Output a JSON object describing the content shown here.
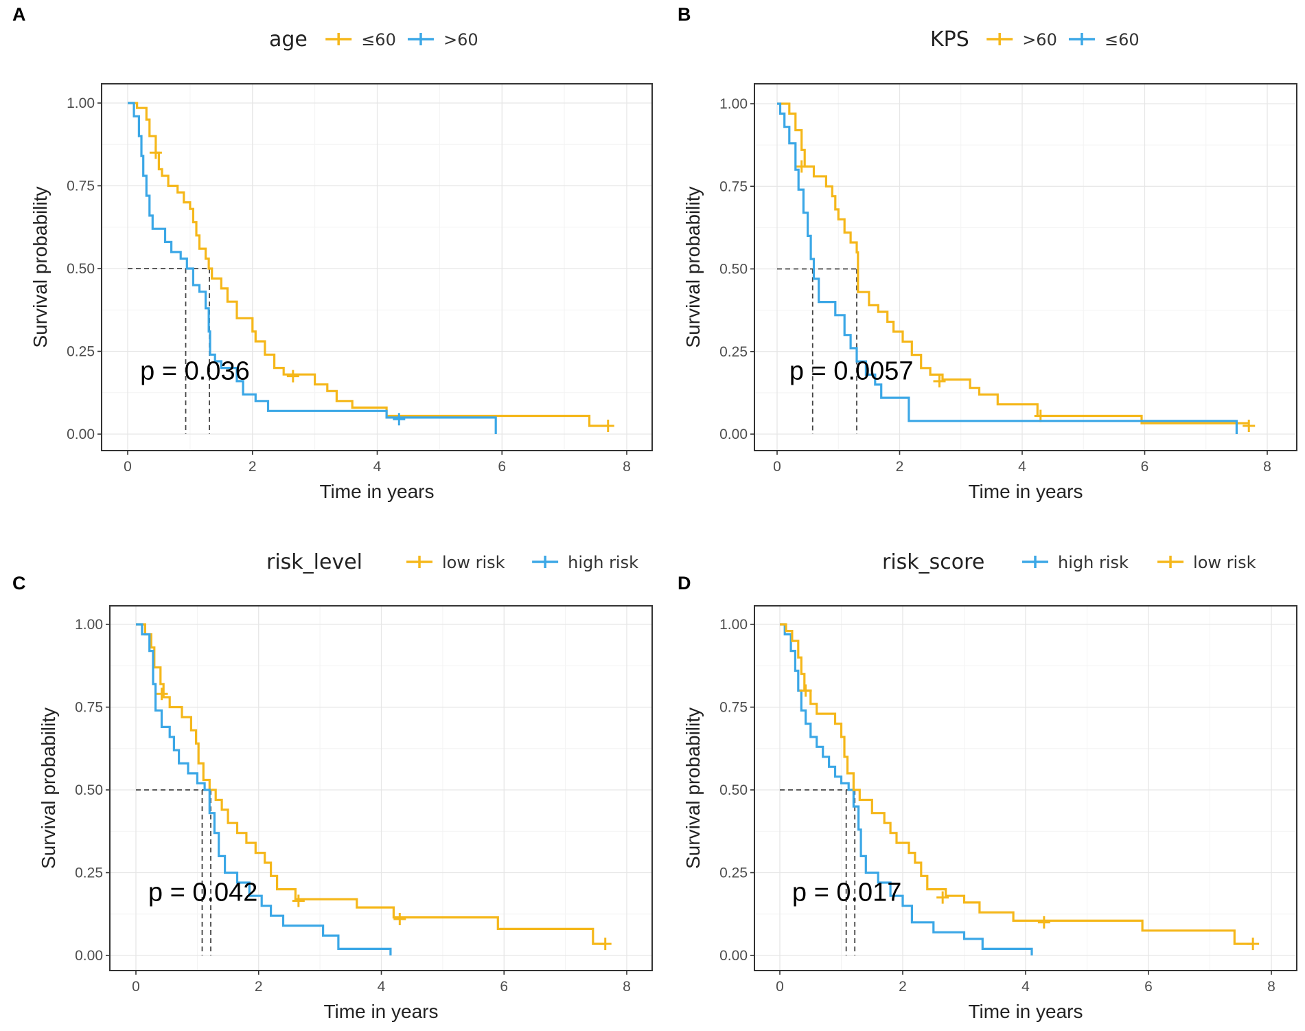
{
  "colors": {
    "gold": "#F5B71A",
    "blue": "#3BA7E6",
    "frame": "#333333"
  },
  "chart_data": [
    {
      "id": "A",
      "panel_label": "A",
      "type": "line",
      "legend_title": "age",
      "xlabel": "Time in years",
      "ylabel": "Survival probability",
      "xlim": [
        0,
        8
      ],
      "ylim": [
        0,
        1
      ],
      "xticks": [
        "0",
        "2",
        "4",
        "6",
        "8"
      ],
      "yticks": [
        "0.00",
        "0.25",
        "0.50",
        "0.75",
        "1.00"
      ],
      "p_value": "p = 0.036",
      "medians": [
        0.93,
        1.31
      ],
      "series": [
        {
          "name": "≤60",
          "color": "gold",
          "steps": [
            [
              0,
              1
            ],
            [
              0.15,
              0.985
            ],
            [
              0.3,
              0.95
            ],
            [
              0.35,
              0.9
            ],
            [
              0.45,
              0.85
            ],
            [
              0.5,
              0.8
            ],
            [
              0.55,
              0.78
            ],
            [
              0.65,
              0.75
            ],
            [
              0.8,
              0.73
            ],
            [
              0.9,
              0.7
            ],
            [
              1.0,
              0.68
            ],
            [
              1.05,
              0.64
            ],
            [
              1.1,
              0.6
            ],
            [
              1.15,
              0.56
            ],
            [
              1.25,
              0.53
            ],
            [
              1.3,
              0.5
            ],
            [
              1.35,
              0.47
            ],
            [
              1.5,
              0.44
            ],
            [
              1.6,
              0.4
            ],
            [
              1.75,
              0.35
            ],
            [
              2.0,
              0.31
            ],
            [
              2.05,
              0.28
            ],
            [
              2.2,
              0.24
            ],
            [
              2.35,
              0.2
            ],
            [
              2.5,
              0.18
            ],
            [
              3.0,
              0.15
            ],
            [
              3.2,
              0.13
            ],
            [
              3.35,
              0.1
            ],
            [
              3.6,
              0.08
            ],
            [
              4.15,
              0.055
            ],
            [
              5.9,
              0.055
            ],
            [
              7.4,
              0.025
            ],
            [
              7.7,
              0.025
            ]
          ],
          "censors": [
            [
              0.45,
              0.85
            ],
            [
              2.65,
              0.175
            ],
            [
              7.7,
              0.025
            ]
          ]
        },
        {
          "name": ">60",
          "color": "blue",
          "steps": [
            [
              0,
              1
            ],
            [
              0.1,
              0.96
            ],
            [
              0.18,
              0.9
            ],
            [
              0.22,
              0.84
            ],
            [
              0.25,
              0.78
            ],
            [
              0.3,
              0.72
            ],
            [
              0.35,
              0.66
            ],
            [
              0.4,
              0.62
            ],
            [
              0.6,
              0.58
            ],
            [
              0.7,
              0.55
            ],
            [
              0.85,
              0.53
            ],
            [
              0.95,
              0.5
            ],
            [
              1.05,
              0.45
            ],
            [
              1.15,
              0.43
            ],
            [
              1.25,
              0.38
            ],
            [
              1.3,
              0.31
            ],
            [
              1.32,
              0.24
            ],
            [
              1.4,
              0.22
            ],
            [
              1.5,
              0.2
            ],
            [
              1.75,
              0.16
            ],
            [
              1.85,
              0.12
            ],
            [
              2.05,
              0.1
            ],
            [
              2.25,
              0.07
            ],
            [
              4.15,
              0.05
            ],
            [
              5.9,
              0.05
            ],
            [
              5.9,
              0.0
            ]
          ],
          "censors": [
            [
              4.35,
              0.045
            ]
          ]
        }
      ]
    },
    {
      "id": "B",
      "panel_label": "B",
      "type": "line",
      "legend_title": "KPS",
      "xlabel": "Time in years",
      "ylabel": "Survival probability",
      "xlim": [
        0,
        8
      ],
      "ylim": [
        0,
        1
      ],
      "xticks": [
        "0",
        "2",
        "4",
        "6",
        "8"
      ],
      "yticks": [
        "0.00",
        "0.25",
        "0.50",
        "0.75",
        "1.00"
      ],
      "p_value": "p = 0.0057",
      "medians": [
        0.58,
        1.3
      ],
      "series": [
        {
          "name": ">60",
          "color": "gold",
          "steps": [
            [
              0,
              1
            ],
            [
              0.2,
              0.97
            ],
            [
              0.3,
              0.92
            ],
            [
              0.4,
              0.86
            ],
            [
              0.45,
              0.81
            ],
            [
              0.6,
              0.78
            ],
            [
              0.8,
              0.75
            ],
            [
              0.9,
              0.72
            ],
            [
              0.95,
              0.68
            ],
            [
              1.0,
              0.65
            ],
            [
              1.1,
              0.61
            ],
            [
              1.2,
              0.58
            ],
            [
              1.3,
              0.55
            ],
            [
              1.32,
              0.43
            ],
            [
              1.5,
              0.39
            ],
            [
              1.65,
              0.37
            ],
            [
              1.8,
              0.34
            ],
            [
              1.9,
              0.31
            ],
            [
              2.05,
              0.28
            ],
            [
              2.2,
              0.24
            ],
            [
              2.35,
              0.2
            ],
            [
              2.5,
              0.18
            ],
            [
              2.7,
              0.165
            ],
            [
              3.15,
              0.14
            ],
            [
              3.3,
              0.12
            ],
            [
              3.6,
              0.09
            ],
            [
              4.25,
              0.055
            ],
            [
              5.9,
              0.055
            ],
            [
              5.95,
              0.033
            ],
            [
              7.7,
              0.033
            ]
          ],
          "censors": [
            [
              0.4,
              0.81
            ],
            [
              2.65,
              0.16
            ],
            [
              4.3,
              0.055
            ],
            [
              7.7,
              0.025
            ]
          ]
        },
        {
          "name": "≤60",
          "color": "blue",
          "steps": [
            [
              0,
              1
            ],
            [
              0.05,
              0.97
            ],
            [
              0.12,
              0.93
            ],
            [
              0.2,
              0.88
            ],
            [
              0.3,
              0.8
            ],
            [
              0.35,
              0.74
            ],
            [
              0.43,
              0.67
            ],
            [
              0.5,
              0.6
            ],
            [
              0.55,
              0.53
            ],
            [
              0.6,
              0.47
            ],
            [
              0.68,
              0.4
            ],
            [
              0.95,
              0.36
            ],
            [
              1.1,
              0.3
            ],
            [
              1.2,
              0.26
            ],
            [
              1.3,
              0.22
            ],
            [
              1.45,
              0.18
            ],
            [
              1.6,
              0.15
            ],
            [
              1.7,
              0.11
            ],
            [
              2.15,
              0.04
            ],
            [
              7.5,
              0.04
            ],
            [
              7.5,
              0.0
            ]
          ],
          "censors": []
        }
      ]
    },
    {
      "id": "C",
      "panel_label": "C",
      "type": "line",
      "legend_title": "risk_level",
      "xlabel": "Time in years",
      "ylabel": "Survival probability",
      "xlim": [
        0,
        8
      ],
      "ylim": [
        0,
        1
      ],
      "xticks": [
        "0",
        "2",
        "4",
        "6",
        "8"
      ],
      "yticks": [
        "0.00",
        "0.25",
        "0.50",
        "0.75",
        "1.00"
      ],
      "p_value": "p = 0.042",
      "medians": [
        1.08,
        1.22
      ],
      "series": [
        {
          "name": "low risk",
          "color": "gold",
          "steps": [
            [
              0,
              1
            ],
            [
              0.15,
              0.97
            ],
            [
              0.25,
              0.93
            ],
            [
              0.3,
              0.87
            ],
            [
              0.4,
              0.82
            ],
            [
              0.45,
              0.78
            ],
            [
              0.55,
              0.75
            ],
            [
              0.75,
              0.72
            ],
            [
              0.9,
              0.68
            ],
            [
              0.98,
              0.64
            ],
            [
              1.02,
              0.58
            ],
            [
              1.1,
              0.53
            ],
            [
              1.2,
              0.5
            ],
            [
              1.3,
              0.47
            ],
            [
              1.4,
              0.44
            ],
            [
              1.5,
              0.4
            ],
            [
              1.65,
              0.37
            ],
            [
              1.8,
              0.34
            ],
            [
              1.95,
              0.31
            ],
            [
              2.1,
              0.28
            ],
            [
              2.2,
              0.24
            ],
            [
              2.3,
              0.2
            ],
            [
              2.6,
              0.17
            ],
            [
              3.6,
              0.145
            ],
            [
              4.2,
              0.115
            ],
            [
              5.9,
              0.08
            ],
            [
              7.45,
              0.035
            ],
            [
              7.65,
              0.035
            ]
          ],
          "censors": [
            [
              0.42,
              0.79
            ],
            [
              2.65,
              0.165
            ],
            [
              4.3,
              0.11
            ],
            [
              7.65,
              0.035
            ]
          ]
        },
        {
          "name": "high risk",
          "color": "blue",
          "steps": [
            [
              0,
              1
            ],
            [
              0.1,
              0.97
            ],
            [
              0.22,
              0.92
            ],
            [
              0.28,
              0.82
            ],
            [
              0.32,
              0.74
            ],
            [
              0.42,
              0.69
            ],
            [
              0.55,
              0.66
            ],
            [
              0.62,
              0.62
            ],
            [
              0.7,
              0.58
            ],
            [
              0.85,
              0.55
            ],
            [
              1.0,
              0.52
            ],
            [
              1.12,
              0.5
            ],
            [
              1.2,
              0.43
            ],
            [
              1.28,
              0.37
            ],
            [
              1.35,
              0.3
            ],
            [
              1.45,
              0.25
            ],
            [
              1.65,
              0.22
            ],
            [
              1.85,
              0.18
            ],
            [
              2.05,
              0.15
            ],
            [
              2.2,
              0.12
            ],
            [
              2.4,
              0.09
            ],
            [
              3.05,
              0.06
            ],
            [
              3.3,
              0.02
            ],
            [
              4.15,
              0.02
            ],
            [
              4.15,
              0.0
            ]
          ],
          "censors": []
        }
      ]
    },
    {
      "id": "D",
      "panel_label": "D",
      "type": "line",
      "legend_title": "risk_score",
      "xlabel": "Time in years",
      "ylabel": "Survival probability",
      "xlim": [
        0,
        8
      ],
      "ylim": [
        0,
        1
      ],
      "xticks": [
        "0",
        "2",
        "4",
        "6",
        "8"
      ],
      "yticks": [
        "0.00",
        "0.25",
        "0.50",
        "0.75",
        "1.00"
      ],
      "p_value": "p = 0.017",
      "medians": [
        1.08,
        1.22
      ],
      "series": [
        {
          "name": "high risk",
          "color": "blue",
          "steps": [
            [
              0,
              1
            ],
            [
              0.08,
              0.97
            ],
            [
              0.18,
              0.92
            ],
            [
              0.25,
              0.86
            ],
            [
              0.3,
              0.8
            ],
            [
              0.35,
              0.74
            ],
            [
              0.42,
              0.7
            ],
            [
              0.5,
              0.66
            ],
            [
              0.6,
              0.63
            ],
            [
              0.7,
              0.6
            ],
            [
              0.8,
              0.57
            ],
            [
              0.9,
              0.54
            ],
            [
              1.0,
              0.52
            ],
            [
              1.12,
              0.5
            ],
            [
              1.2,
              0.45
            ],
            [
              1.28,
              0.38
            ],
            [
              1.32,
              0.3
            ],
            [
              1.4,
              0.25
            ],
            [
              1.6,
              0.22
            ],
            [
              1.8,
              0.18
            ],
            [
              2.0,
              0.15
            ],
            [
              2.15,
              0.1
            ],
            [
              2.5,
              0.07
            ],
            [
              3.0,
              0.05
            ],
            [
              3.3,
              0.02
            ],
            [
              4.1,
              0.02
            ],
            [
              4.1,
              0.0
            ]
          ],
          "censors": []
        },
        {
          "name": "low risk",
          "color": "gold",
          "steps": [
            [
              0,
              1
            ],
            [
              0.1,
              0.98
            ],
            [
              0.2,
              0.95
            ],
            [
              0.3,
              0.9
            ],
            [
              0.35,
              0.85
            ],
            [
              0.4,
              0.8
            ],
            [
              0.5,
              0.76
            ],
            [
              0.6,
              0.73
            ],
            [
              0.9,
              0.7
            ],
            [
              1.0,
              0.66
            ],
            [
              1.05,
              0.6
            ],
            [
              1.1,
              0.55
            ],
            [
              1.2,
              0.5
            ],
            [
              1.3,
              0.47
            ],
            [
              1.5,
              0.43
            ],
            [
              1.7,
              0.4
            ],
            [
              1.8,
              0.37
            ],
            [
              1.9,
              0.34
            ],
            [
              2.1,
              0.31
            ],
            [
              2.2,
              0.28
            ],
            [
              2.3,
              0.24
            ],
            [
              2.4,
              0.2
            ],
            [
              2.7,
              0.18
            ],
            [
              3.0,
              0.16
            ],
            [
              3.25,
              0.13
            ],
            [
              3.8,
              0.105
            ],
            [
              5.9,
              0.075
            ],
            [
              7.4,
              0.035
            ],
            [
              7.7,
              0.035
            ]
          ],
          "censors": [
            [
              0.42,
              0.8
            ],
            [
              2.65,
              0.175
            ],
            [
              4.3,
              0.1
            ],
            [
              7.7,
              0.035
            ]
          ]
        }
      ]
    }
  ]
}
